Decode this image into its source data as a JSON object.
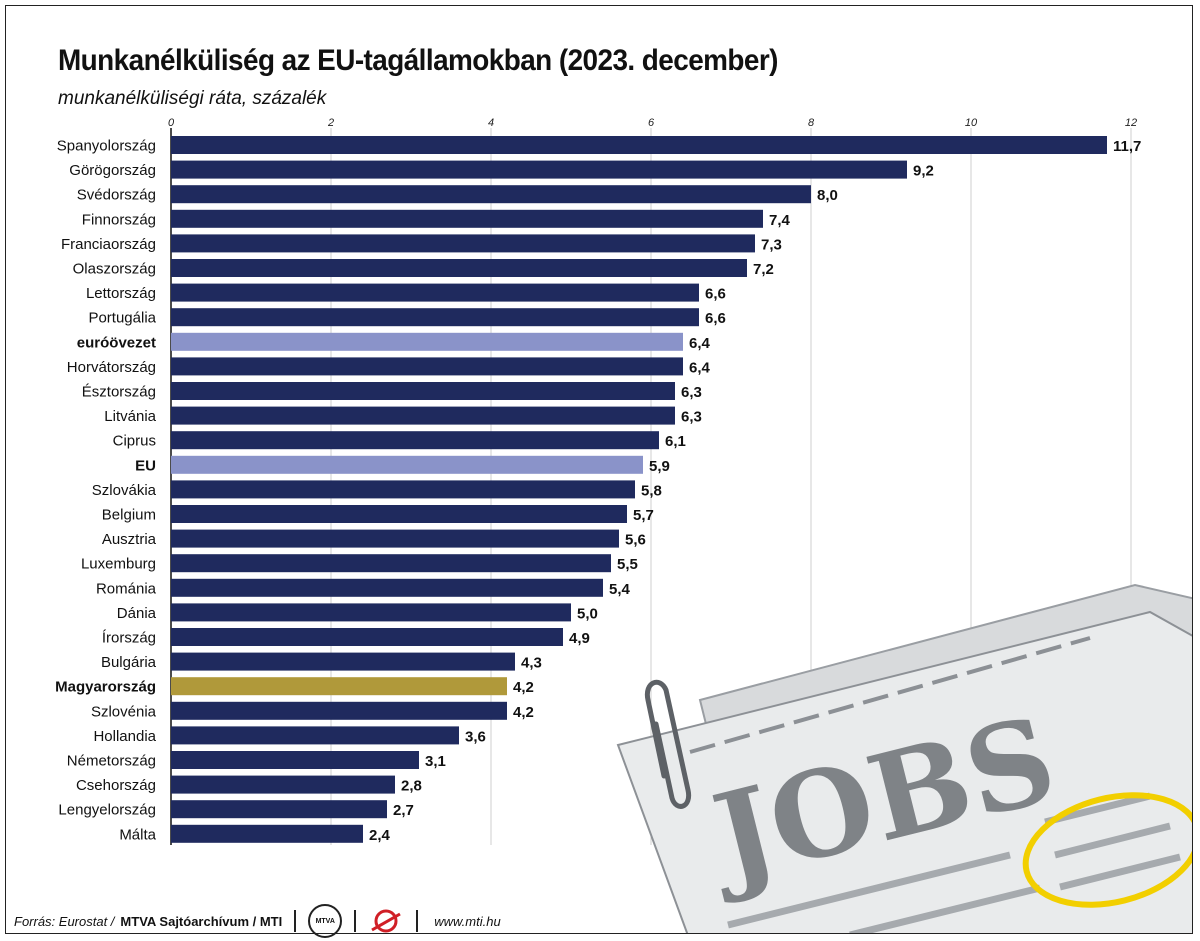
{
  "title": "Munkanélküliség az EU-tagállamokban (2023. december)",
  "subtitle": "munkanélküliségi ráta, százalék",
  "footer": {
    "source": "Forrás: Eurostat /",
    "org": "MTVA Sajtóarchívum / MTI",
    "logo_text": "MTVA",
    "website": "www.mti.hu"
  },
  "illustration": {
    "text": "JOBS"
  },
  "colors": {
    "country": "#1f2a5e",
    "aggregate": "#8a93c9",
    "highlight": "#b0993a",
    "grid": "#cfcfcf"
  },
  "chart_data": {
    "type": "bar",
    "orientation": "horizontal",
    "xlim": [
      0,
      12
    ],
    "xticks": [
      0,
      2,
      4,
      6,
      8,
      10,
      12
    ],
    "grid": true,
    "categories": [
      "Spanyolország",
      "Görögország",
      "Svédország",
      "Finnország",
      "Franciaország",
      "Olaszország",
      "Lettország",
      "Portugália",
      "euróövezet",
      "Horvátország",
      "Észtország",
      "Litvánia",
      "Ciprus",
      "EU",
      "Szlovákia",
      "Belgium",
      "Ausztria",
      "Luxemburg",
      "Románia",
      "Dánia",
      "Írország",
      "Bulgária",
      "Magyarország",
      "Szlovénia",
      "Hollandia",
      "Németország",
      "Csehország",
      "Lengyelország",
      "Málta"
    ],
    "values": [
      11.7,
      9.2,
      8.0,
      7.4,
      7.3,
      7.2,
      6.6,
      6.6,
      6.4,
      6.4,
      6.3,
      6.3,
      6.1,
      5.9,
      5.8,
      5.7,
      5.6,
      5.5,
      5.4,
      5.0,
      4.9,
      4.3,
      4.2,
      4.2,
      3.6,
      3.1,
      2.8,
      2.7,
      2.4
    ],
    "labels": [
      "11,7",
      "9,2",
      "8,0",
      "7,4",
      "7,3",
      "7,2",
      "6,6",
      "6,6",
      "6,4",
      "6,4",
      "6,3",
      "6,3",
      "6,1",
      "5,9",
      "5,8",
      "5,7",
      "5,6",
      "5,5",
      "5,4",
      "5,0",
      "4,9",
      "4,3",
      "4,2",
      "4,2",
      "3,6",
      "3,1",
      "2,8",
      "2,7",
      "2,4"
    ],
    "bar_kind": [
      "country",
      "country",
      "country",
      "country",
      "country",
      "country",
      "country",
      "country",
      "aggregate",
      "country",
      "country",
      "country",
      "country",
      "aggregate",
      "country",
      "country",
      "country",
      "country",
      "country",
      "country",
      "country",
      "country",
      "highlight",
      "country",
      "country",
      "country",
      "country",
      "country",
      "country"
    ],
    "bold_categories": [
      "euróövezet",
      "EU",
      "Magyarország"
    ]
  }
}
